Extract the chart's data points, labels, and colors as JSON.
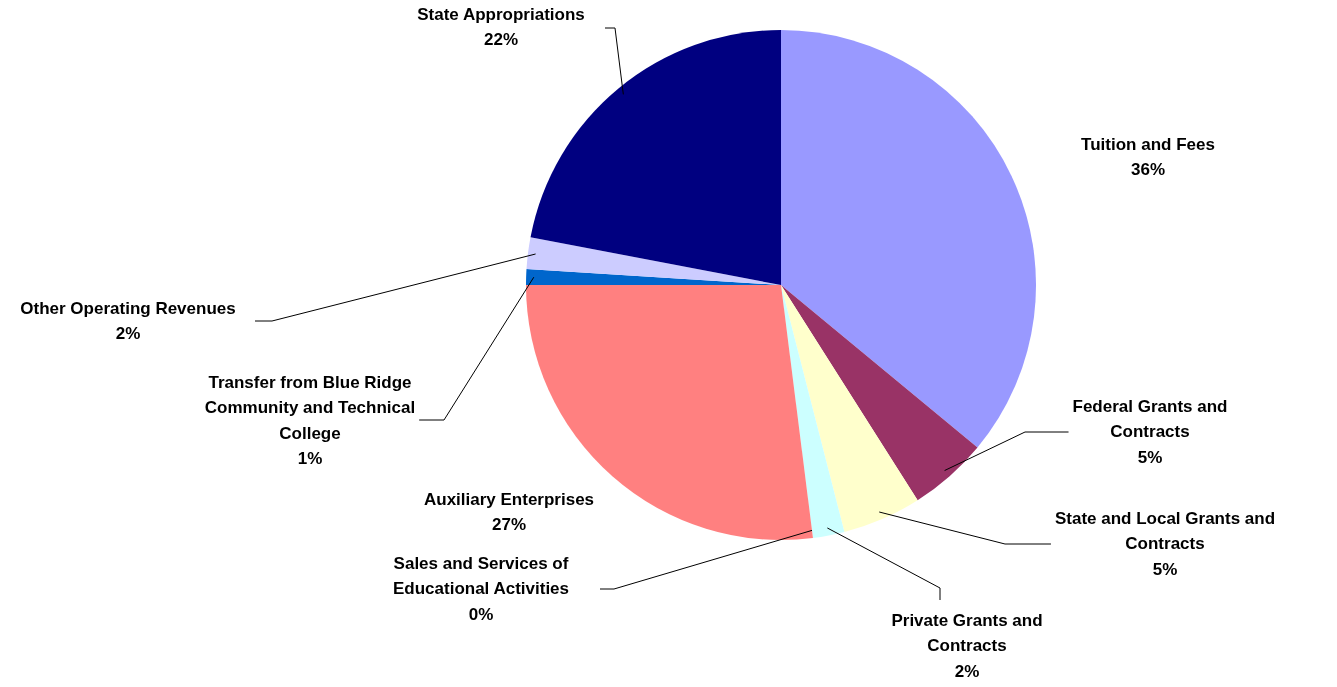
{
  "chart_data": {
    "type": "pie",
    "categories": [
      "Tuition and Fees",
      "Federal Grants and Contracts",
      "State and Local Grants and Contracts",
      "Private Grants and Contracts",
      "Sales and Services of Educational Activities",
      "Auxiliary Enterprises",
      "Transfer from Blue Ridge Community and Technical College",
      "Other Operating Revenues",
      "State Appropriations"
    ],
    "values": [
      36,
      5,
      5,
      2,
      0,
      27,
      1,
      2,
      22
    ],
    "colors": [
      "#9999ff",
      "#993366",
      "#ffffcc",
      "#ccffff",
      "#660066",
      "#ff8080",
      "#0066cc",
      "#ccccff",
      "#000080"
    ],
    "value_labels": [
      "36%",
      "5%",
      "5%",
      "2%",
      "0%",
      "27%",
      "1%",
      "2%",
      "22%"
    ]
  }
}
